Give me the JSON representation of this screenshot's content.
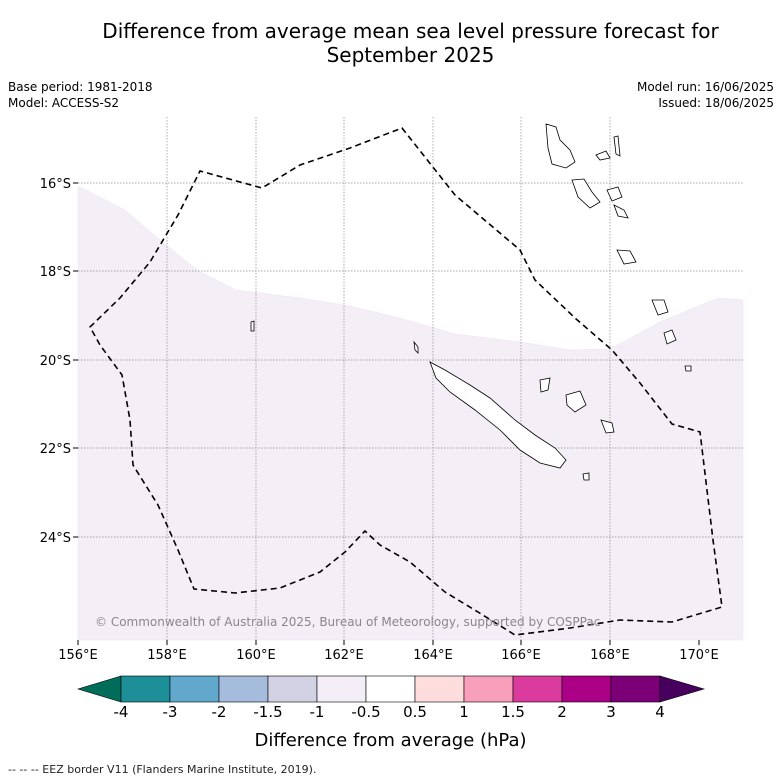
{
  "title_line1": "Difference from average mean sea level pressure forecast for",
  "title_line2": "September 2025",
  "meta_left": {
    "base_period": "Base period: 1981-2018",
    "model": "Model: ACCESS-S2"
  },
  "meta_right": {
    "model_run": "Model run: 16/06/2025",
    "issued": "Issued: 18/06/2025"
  },
  "map": {
    "lon_ticks": [
      "156°E",
      "158°E",
      "160°E",
      "162°E",
      "164°E",
      "166°E",
      "168°E",
      "170°E"
    ],
    "lat_ticks": [
      "16°S",
      "18°S",
      "20°S",
      "22°S",
      "24°S"
    ],
    "copyright": "© Commonwealth of Australia 2025, Bureau of Meteorology, supported by COSPPac",
    "shaded_band": "-1 to -0.5 hPa"
  },
  "colorbar": {
    "ticks": [
      "-4",
      "-3",
      "-2",
      "-1.5",
      "-1",
      "-0.5",
      "0.5",
      "1",
      "1.5",
      "2",
      "3",
      "4"
    ],
    "colors": [
      "#006d5b",
      "#1c8f98",
      "#62a8cc",
      "#a6bcdc",
      "#d2d2e4",
      "#f3eef7",
      "#ffffff",
      "#ffdddd",
      "#f89fbb",
      "#db3b9c",
      "#ac0086",
      "#7b0078",
      "#48005f"
    ],
    "label": "Difference from average (hPa)"
  },
  "footer": "--  --  -- EEZ border V11 (Flanders Marine Institute, 2019)."
}
